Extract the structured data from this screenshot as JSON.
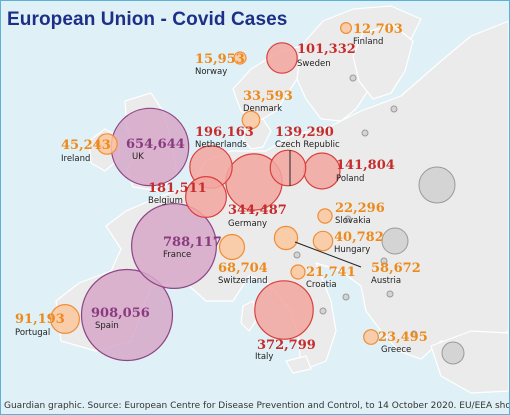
{
  "title": "European Union - Covid Cases",
  "footer": "Guardian graphic. Source: European Centre for Disease Prevention and Control, to 14 October 2020. EU/EEA shown",
  "colors": {
    "sea": "#dff0f7",
    "land": "#ebebeb",
    "border": "#ffffff",
    "purple_fill": "#d7a8c9",
    "purple_stroke": "#8e4585",
    "red_fill": "#f3a6a0",
    "red_stroke": "#d8403c",
    "orange_fill": "#fbc79f",
    "orange_stroke": "#f18e35",
    "grey_fill": "#d4d4d4",
    "grey_stroke": "#9a9a9a",
    "value_purple": "#8a3b80",
    "value_red": "#c62c2c",
    "value_orange": "#ec8a1c",
    "title": "#1d2f86"
  },
  "countries": [
    {
      "name": "Finland",
      "cases": "12,703",
      "tier": "orange"
    },
    {
      "name": "Norway",
      "cases": "15,953",
      "tier": "orange"
    },
    {
      "name": "Sweden",
      "cases": "101,332",
      "tier": "red"
    },
    {
      "name": "Denmark",
      "cases": "33,593",
      "tier": "orange"
    },
    {
      "name": "Ireland",
      "cases": "45,243",
      "tier": "orange"
    },
    {
      "name": "UK",
      "cases": "654,644",
      "tier": "purple"
    },
    {
      "name": "Netherlands",
      "cases": "196,163",
      "tier": "red"
    },
    {
      "name": "Czech Republic",
      "cases": "139,290",
      "tier": "red"
    },
    {
      "name": "Poland",
      "cases": "141,804",
      "tier": "red"
    },
    {
      "name": "Belgium",
      "cases": "181,511",
      "tier": "red"
    },
    {
      "name": "Germany",
      "cases": "344,487",
      "tier": "red"
    },
    {
      "name": "Slovakia",
      "cases": "22,296",
      "tier": "orange"
    },
    {
      "name": "Hungary",
      "cases": "40,782",
      "tier": "orange"
    },
    {
      "name": "France",
      "cases": "788,117",
      "tier": "purple"
    },
    {
      "name": "Switzerland",
      "cases": "68,704",
      "tier": "orange"
    },
    {
      "name": "Croatia",
      "cases": "21,741",
      "tier": "orange"
    },
    {
      "name": "Austria",
      "cases": "58,672",
      "tier": "orange"
    },
    {
      "name": "Portugal",
      "cases": "91,193",
      "tier": "orange"
    },
    {
      "name": "Spain",
      "cases": "908,056",
      "tier": "purple"
    },
    {
      "name": "Italy",
      "cases": "372,799",
      "tier": "red"
    },
    {
      "name": "Greece",
      "cases": "23,495",
      "tier": "orange"
    }
  ]
}
